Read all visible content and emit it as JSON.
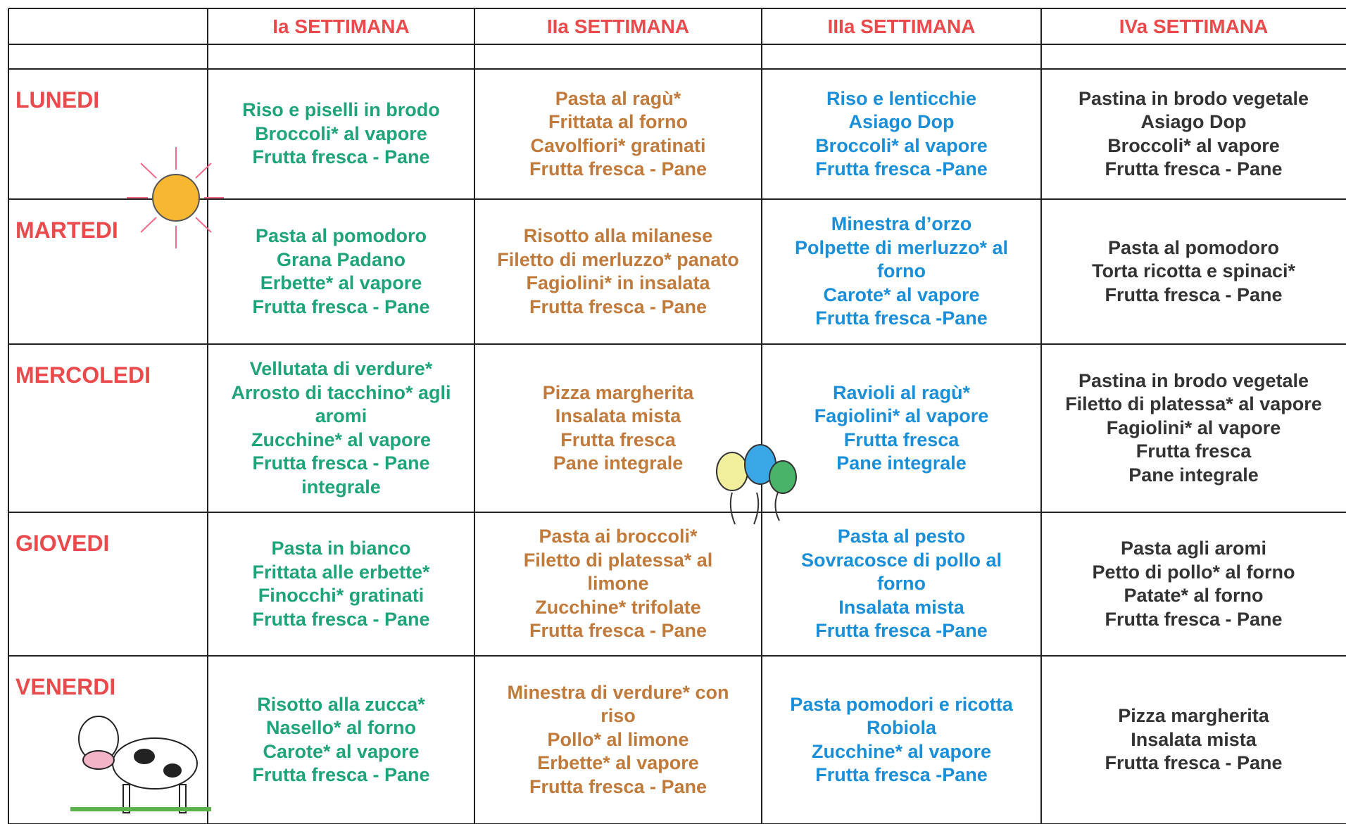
{
  "header": {
    "columns": [
      "Ia SETTIMANA",
      "IIa SETTIMANA",
      "IIIa SETTIMANA",
      "IVa SETTIMANA"
    ]
  },
  "rows": [
    {
      "day": "LUNEDI",
      "cells": [
        [
          "Riso e piselli in brodo",
          "Broccoli* al vapore",
          "Frutta fresca - Pane"
        ],
        [
          "Pasta al ragù*",
          "Frittata al forno",
          "Cavolfiori* gratinati",
          "Frutta fresca - Pane"
        ],
        [
          "Riso e lenticchie",
          "Asiago Dop",
          "Broccoli* al vapore",
          "Frutta fresca -Pane"
        ],
        [
          "Pastina in brodo vegetale",
          "Asiago Dop",
          "Broccoli* al vapore",
          "Frutta fresca - Pane"
        ]
      ]
    },
    {
      "day": "MARTEDI",
      "cells": [
        [
          "Pasta al pomodoro",
          "Grana Padano",
          "Erbette* al vapore",
          "Frutta fresca - Pane"
        ],
        [
          "Risotto alla milanese",
          "Filetto di merluzzo* panato",
          "Fagiolini* in insalata",
          "Frutta fresca - Pane"
        ],
        [
          "Minestra d’orzo",
          "Polpette di merluzzo* al",
          "forno",
          "Carote* al vapore",
          "Frutta fresca -Pane"
        ],
        [
          "Pasta al pomodoro",
          "Torta ricotta e spinaci*",
          "Frutta fresca - Pane"
        ]
      ]
    },
    {
      "day": "MERCOLEDI",
      "cells": [
        [
          "Vellutata di verdure*",
          "Arrosto di tacchino* agli",
          "aromi",
          "Zucchine* al vapore",
          "Frutta fresca - Pane",
          "integrale"
        ],
        [
          "Pizza margherita",
          "Insalata mista",
          "Frutta fresca",
          "Pane integrale"
        ],
        [
          "Ravioli al ragù*",
          "Fagiolini* al vapore",
          "Frutta fresca",
          "Pane integrale"
        ],
        [
          "Pastina in brodo vegetale",
          "Filetto di platessa* al vapore",
          "Fagiolini* al vapore",
          "Frutta fresca",
          "Pane integrale"
        ]
      ]
    },
    {
      "day": "GIOVEDI",
      "cells": [
        [
          "Pasta in bianco",
          "Frittata alle erbette*",
          "Finocchi* gratinati",
          "Frutta fresca - Pane"
        ],
        [
          "Pasta ai broccoli*",
          "Filetto di platessa* al",
          "limone",
          "Zucchine* trifolate",
          "Frutta fresca - Pane"
        ],
        [
          "Pasta al pesto",
          "Sovracosce di pollo al",
          "forno",
          "Insalata mista",
          "Frutta fresca -Pane"
        ],
        [
          "Pasta agli aromi",
          "Petto di pollo* al forno",
          "Patate* al forno",
          "Frutta fresca - Pane"
        ]
      ]
    },
    {
      "day": "VENERDI",
      "cells": [
        [
          "Risotto alla zucca*",
          "Nasello* al forno",
          "Carote* al vapore",
          "Frutta fresca - Pane"
        ],
        [
          "Minestra di verdure* con",
          "riso",
          "Pollo* al limone",
          "Erbette* al vapore",
          "Frutta fresca - Pane"
        ],
        [
          "Pasta pomodori e ricotta",
          "Robiola",
          "Zucchine* al vapore",
          "Frutta fresca -Pane"
        ],
        [
          "Pizza margherita",
          "Insalata mista",
          "Frutta fresca - Pane"
        ]
      ]
    }
  ]
}
